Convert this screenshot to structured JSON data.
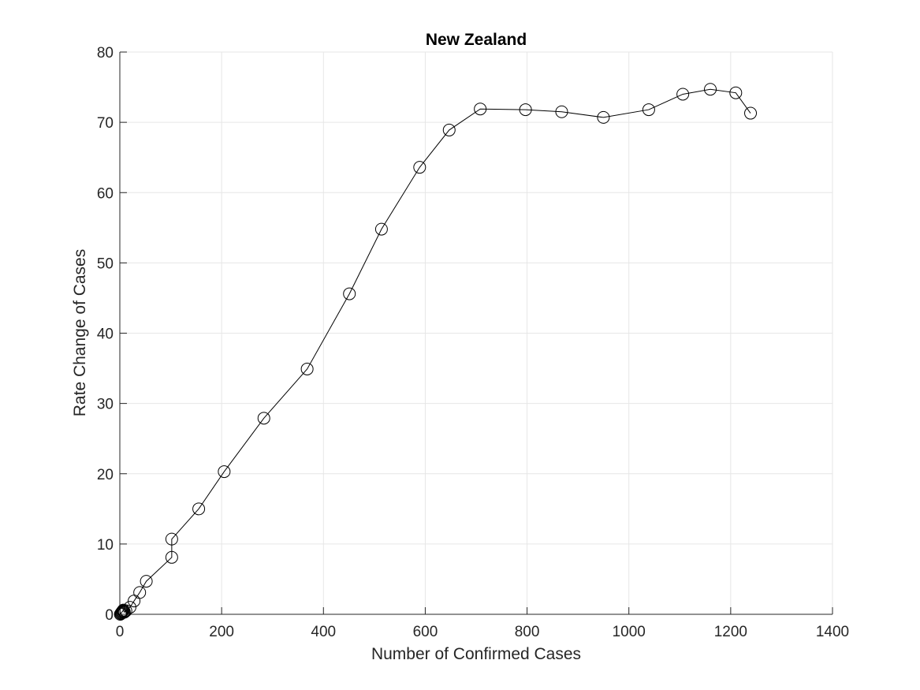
{
  "chart_data": {
    "type": "line",
    "title": "New Zealand",
    "xlabel": "Number of Confirmed Cases",
    "ylabel": "Rate Change of Cases",
    "xlim": [
      0,
      1400
    ],
    "ylim": [
      0,
      80
    ],
    "xticks": [
      0,
      200,
      400,
      600,
      800,
      1000,
      1200,
      1400
    ],
    "yticks": [
      0,
      10,
      20,
      30,
      40,
      50,
      60,
      70,
      80
    ],
    "xtick_labels": [
      "0",
      "200",
      "400",
      "600",
      "800",
      "1000",
      "1200",
      "1400"
    ],
    "ytick_labels": [
      "0",
      "10",
      "20",
      "30",
      "40",
      "50",
      "60",
      "70",
      "80"
    ],
    "grid": true,
    "marker": "circle-open",
    "line_color": "#000000",
    "series": [
      {
        "x": [
          1,
          2,
          3,
          4,
          5,
          6,
          7,
          8,
          9,
          12,
          20,
          28,
          39,
          52,
          102,
          102,
          155,
          205,
          283,
          368,
          451,
          514,
          589,
          647,
          708,
          797,
          868,
          950,
          1039,
          1106,
          1160,
          1210,
          1239
        ],
        "y": [
          0,
          0.1,
          0.2,
          0.3,
          0.4,
          0.5,
          0.6,
          0.4,
          0.3,
          0.5,
          1.0,
          1.9,
          3.1,
          4.7,
          8.1,
          10.7,
          15.0,
          20.3,
          27.9,
          34.9,
          45.6,
          54.8,
          63.6,
          68.9,
          71.9,
          71.8,
          71.5,
          70.7,
          71.8,
          74.0,
          74.7,
          74.2,
          71.3
        ]
      }
    ]
  }
}
